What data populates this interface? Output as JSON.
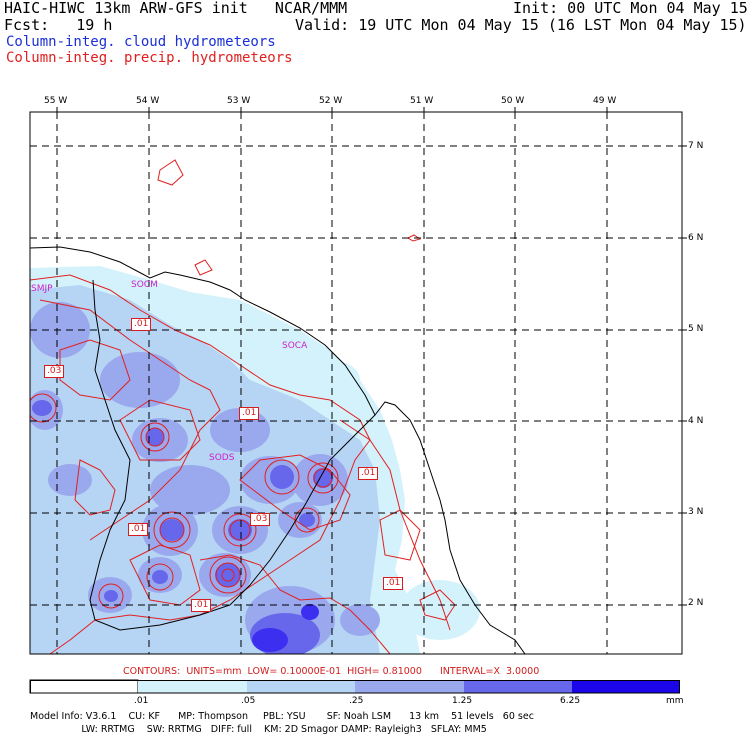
{
  "header": {
    "line1_left": "HAIC-HIWC 13km ARW-GFS init   NCAR/MMM",
    "line1_right": "Init: 00 UTC Mon 04 May 15",
    "line2_left": "Fcst:   19 h",
    "line2_right": "Valid: 19 UTC Mon 04 May 15 (16 LST Mon 04 May 15)",
    "field1": "Column-integ. cloud hydrometeors",
    "field2": "Column-integ. precip. hydrometeors",
    "field1_color": "#1a2fd6",
    "field2_color": "#e02020"
  },
  "map": {
    "lon_labels": [
      "55 W",
      "54 W",
      "53 W",
      "52 W",
      "51 W",
      "50 W",
      "49 W"
    ],
    "lat_labels": [
      "7 N",
      "6 N",
      "5 N",
      "4 N",
      "3 N",
      "2 N"
    ],
    "stations": [
      {
        "id": "SMJP"
      },
      {
        "id": "SOCM"
      },
      {
        "id": "SOCA"
      },
      {
        "id": "SODS"
      }
    ],
    "contour_labels": [
      ".01",
      ".03",
      ".01",
      ".01",
      ".01",
      ".03",
      ".01",
      ".01"
    ]
  },
  "contour_info": "CONTOURS:  UNITS=mm  LOW= 0.10000E-01  HIGH= 0.81000      INTERVAL=X  3.0000",
  "colorbar": {
    "labels": [
      ".01",
      ".05",
      ".25",
      "1.25",
      "6.25",
      "mm"
    ],
    "colors": [
      "#ffffff",
      "#d4f2fb",
      "#b6d4f4",
      "#9aa9ee",
      "#6767ec",
      "#3c2ff0",
      "#1a06e8"
    ]
  },
  "model_info": {
    "line1": "Model Info: V3.6.1    CU: KF      MP: Thompson     PBL: YSU       SF: Noah LSM      13 km    51 levels   60 sec",
    "line2": "                 LW: RRTMG    SW: RRTMG   DIFF: full    KM: 2D Smagor DAMP: Rayleigh3   SFLAY: MM5"
  }
}
